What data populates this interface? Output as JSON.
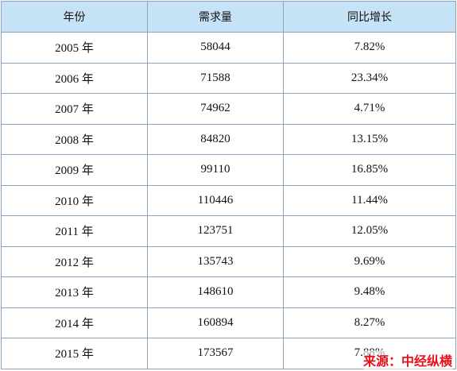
{
  "table": {
    "header": [
      "年份",
      "需求量",
      "同比增长"
    ],
    "rows": [
      [
        "2005 年",
        "58044",
        "7.82%"
      ],
      [
        "2006 年",
        "71588",
        "23.34%"
      ],
      [
        "2007 年",
        "74962",
        "4.71%"
      ],
      [
        "2008 年",
        "84820",
        "13.15%"
      ],
      [
        "2009 年",
        "99110",
        "16.85%"
      ],
      [
        "2010 年",
        "110446",
        "11.44%"
      ],
      [
        "2011 年",
        "123751",
        "12.05%"
      ],
      [
        "2012 年",
        "135743",
        "9.69%"
      ],
      [
        "2013 年",
        "148610",
        "9.48%"
      ],
      [
        "2014 年",
        "160894",
        "8.27%"
      ],
      [
        "2015 年",
        "173567",
        "7.88%"
      ]
    ]
  },
  "source": "来源：中经纵横"
}
